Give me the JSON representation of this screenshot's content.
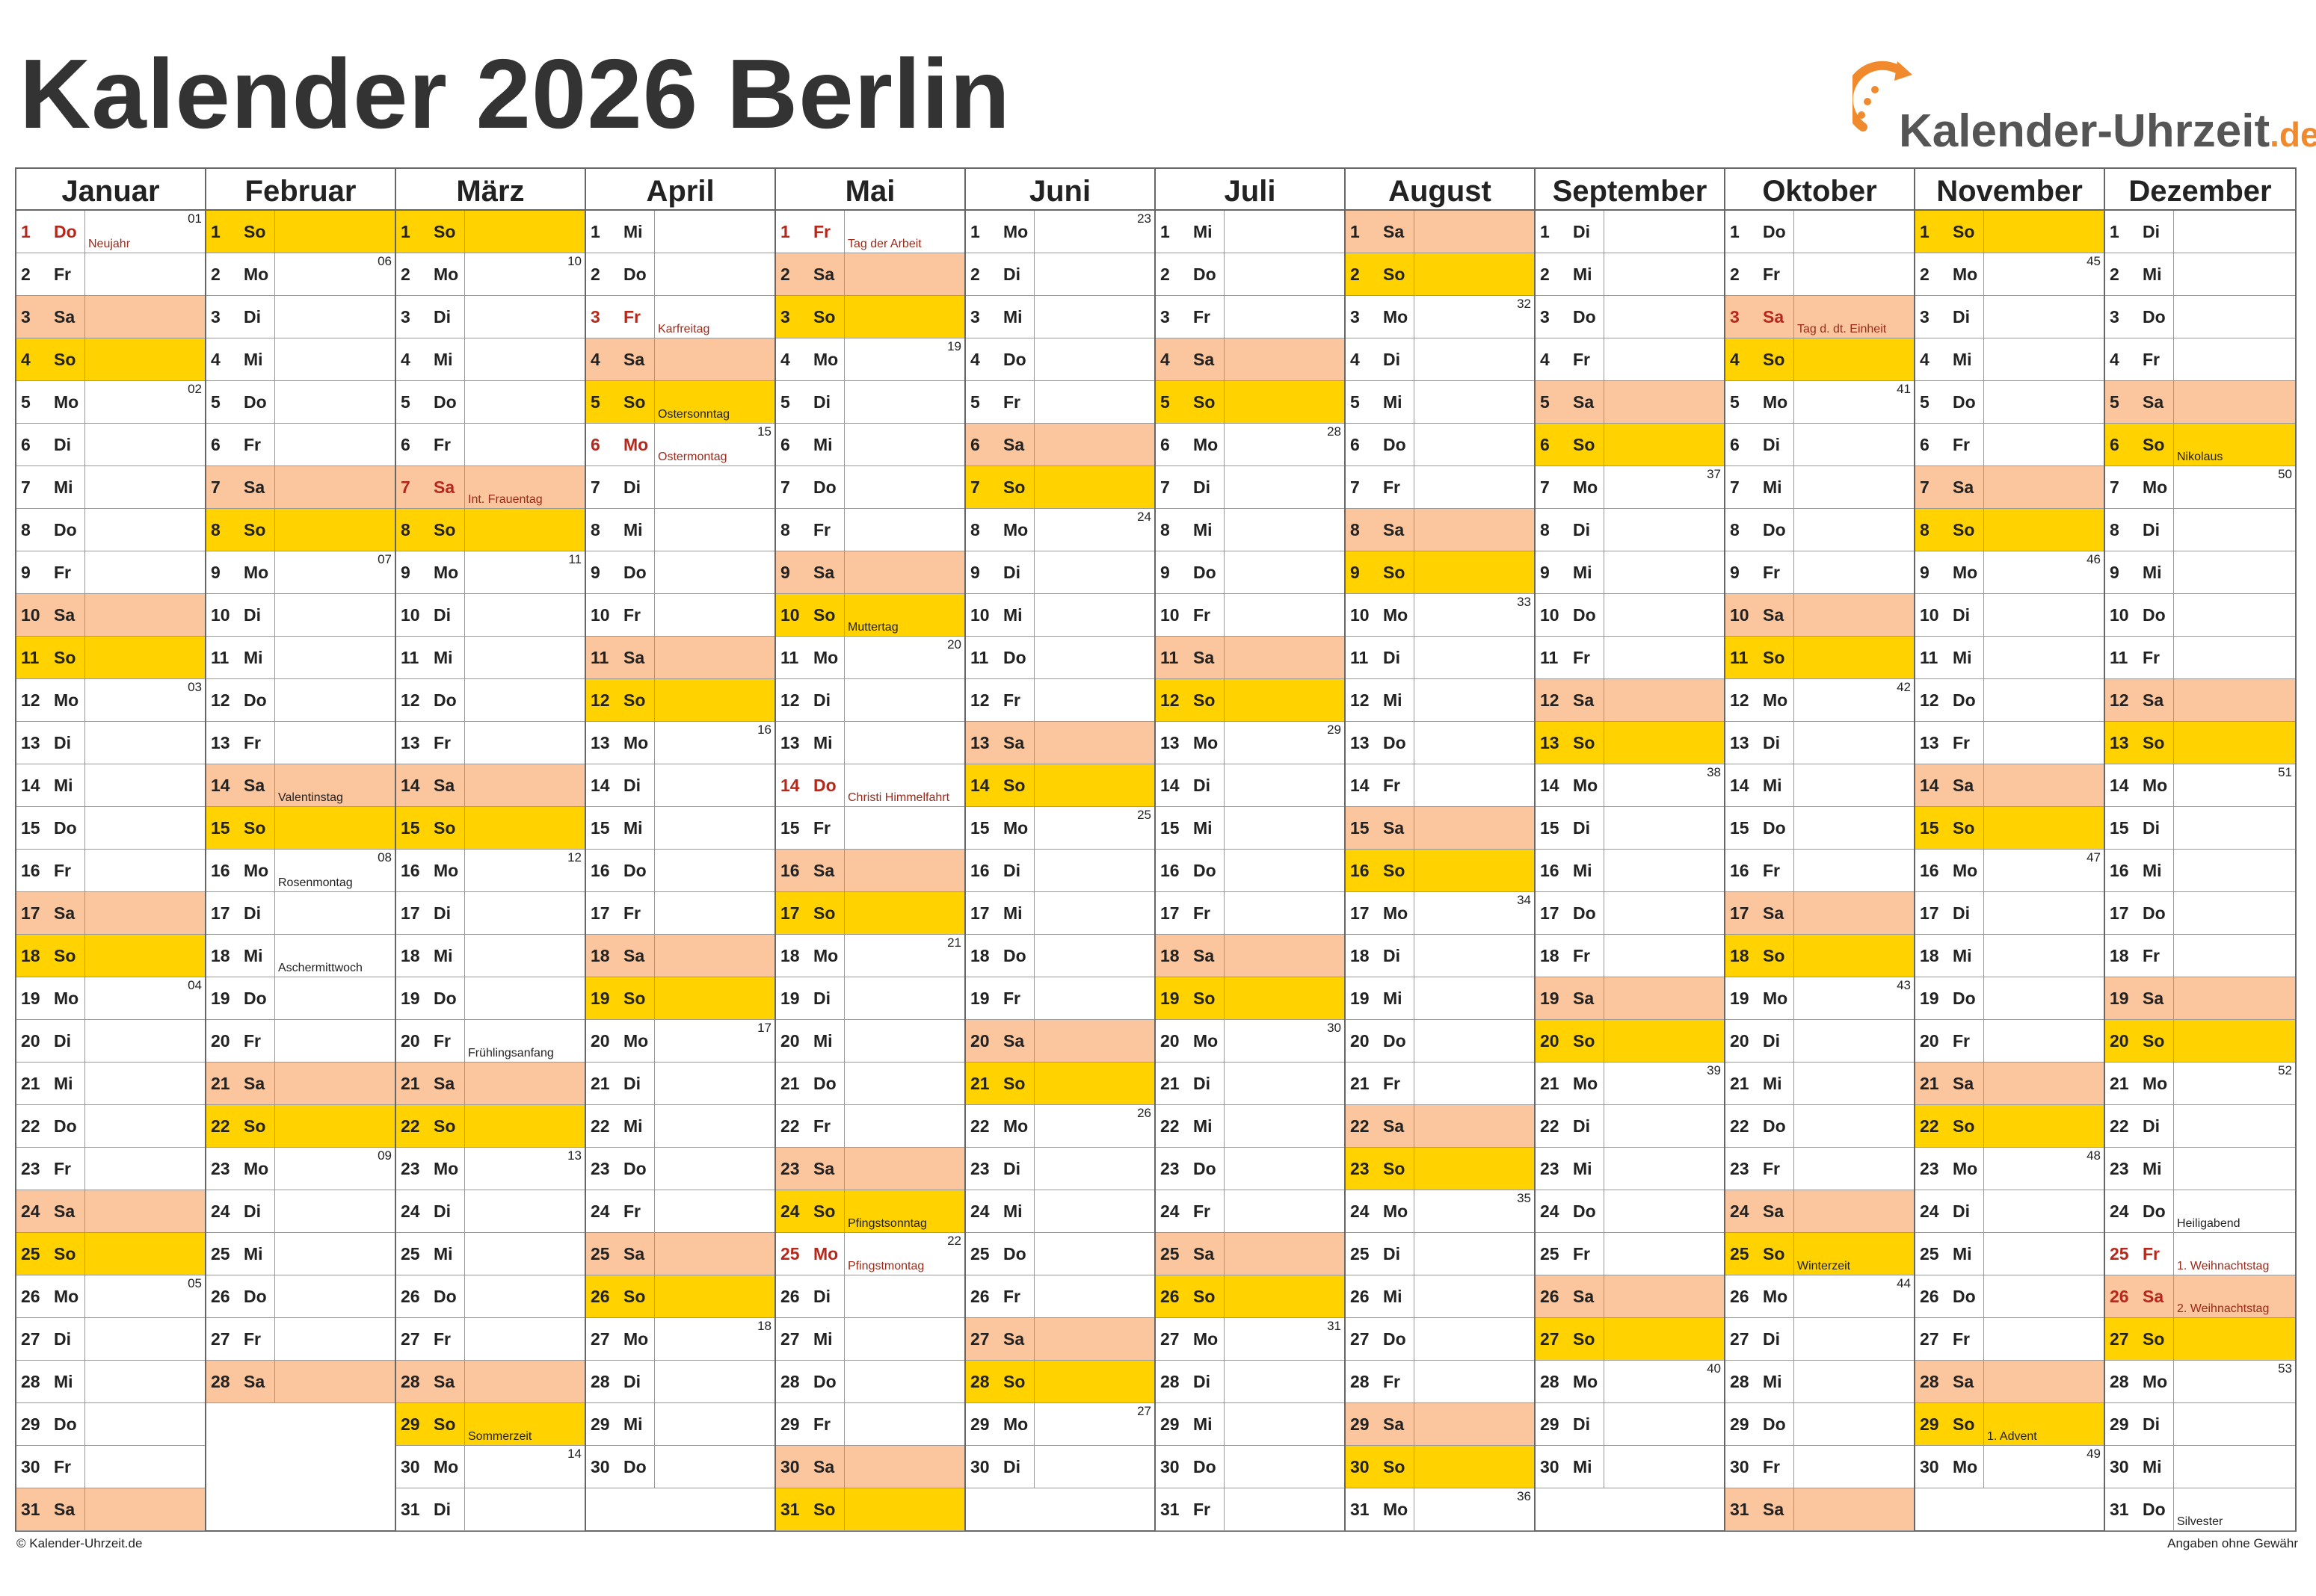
{
  "title": "Kalender 2026 Berlin",
  "logo": {
    "name": "Kalender-Uhrzeit",
    "tld": ".de"
  },
  "footer": {
    "left": "© Kalender-Uhrzeit.de",
    "right": "Angaben ohne Gewähr"
  },
  "colors": {
    "saturday": "#fbc59e",
    "sunday": "#ffd200",
    "holiday_text": "#b5291c",
    "grid": "#666666"
  },
  "weekdays": [
    "Mo",
    "Di",
    "Mi",
    "Do",
    "Fr",
    "Sa",
    "So"
  ],
  "months": [
    {
      "name": "Januar",
      "days": 31,
      "first_weekday": 3
    },
    {
      "name": "Februar",
      "days": 28,
      "first_weekday": 6
    },
    {
      "name": "März",
      "days": 31,
      "first_weekday": 6
    },
    {
      "name": "April",
      "days": 30,
      "first_weekday": 2
    },
    {
      "name": "Mai",
      "days": 31,
      "first_weekday": 4
    },
    {
      "name": "Juni",
      "days": 30,
      "first_weekday": 0
    },
    {
      "name": "Juli",
      "days": 31,
      "first_weekday": 2
    },
    {
      "name": "August",
      "days": 31,
      "first_weekday": 5
    },
    {
      "name": "September",
      "days": 30,
      "first_weekday": 1
    },
    {
      "name": "Oktober",
      "days": 31,
      "first_weekday": 3
    },
    {
      "name": "November",
      "days": 30,
      "first_weekday": 6
    },
    {
      "name": "Dezember",
      "days": 31,
      "first_weekday": 1
    }
  ],
  "week_start_on_jan1": "01",
  "holidays": [
    {
      "month": 1,
      "day": 1,
      "label": "Neujahr"
    },
    {
      "month": 4,
      "day": 3,
      "label": "Karfreitag"
    },
    {
      "month": 4,
      "day": 6,
      "label": "Ostermontag"
    },
    {
      "month": 3,
      "day": 7,
      "label": "Int. Frauentag"
    },
    {
      "month": 5,
      "day": 1,
      "label": "Tag der Arbeit"
    },
    {
      "month": 5,
      "day": 14,
      "label": "Christi Himmelfahrt"
    },
    {
      "month": 5,
      "day": 25,
      "label": "Pfingstmontag"
    },
    {
      "month": 10,
      "day": 3,
      "label": "Tag d. dt. Einheit"
    },
    {
      "month": 12,
      "day": 25,
      "label": "1. Weihnachtstag"
    },
    {
      "month": 12,
      "day": 26,
      "label": "2. Weihnachtstag"
    }
  ],
  "notes": [
    {
      "month": 2,
      "day": 14,
      "label": "Valentinstag"
    },
    {
      "month": 2,
      "day": 16,
      "label": "Rosenmontag"
    },
    {
      "month": 2,
      "day": 18,
      "label": "Aschermittwoch"
    },
    {
      "month": 3,
      "day": 20,
      "label": "Frühlingsanfang"
    },
    {
      "month": 3,
      "day": 29,
      "label": "Sommerzeit"
    },
    {
      "month": 4,
      "day": 5,
      "label": "Ostersonntag"
    },
    {
      "month": 5,
      "day": 10,
      "label": "Muttertag"
    },
    {
      "month": 5,
      "day": 24,
      "label": "Pfingstsonntag"
    },
    {
      "month": 10,
      "day": 25,
      "label": "Winterzeit"
    },
    {
      "month": 11,
      "day": 29,
      "label": "1. Advent"
    },
    {
      "month": 12,
      "day": 6,
      "label": "Nikolaus"
    },
    {
      "month": 12,
      "day": 24,
      "label": "Heiligabend"
    },
    {
      "month": 12,
      "day": 31,
      "label": "Silvester"
    }
  ]
}
